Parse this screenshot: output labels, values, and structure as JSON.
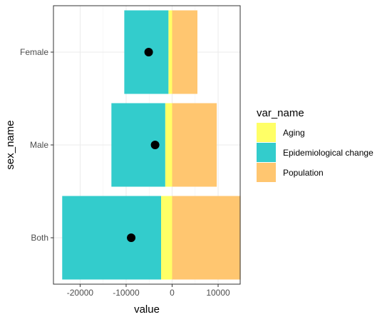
{
  "chart_data": {
    "type": "bar",
    "orientation": "horizontal",
    "stacked": true,
    "xlabel": "value",
    "ylabel": "sex_name",
    "categories": [
      "Both",
      "Male",
      "Female"
    ],
    "xlim": [
      -25800,
      14800
    ],
    "x_ticks": [
      -20000,
      -10000,
      0,
      10000
    ],
    "x_tick_labels": [
      "-20000",
      "-10000",
      "0",
      "10000"
    ],
    "grid": true,
    "series": [
      {
        "name": "Aging",
        "color": "#FFFF66",
        "values": [
          -2400,
          -1500,
          -800
        ]
      },
      {
        "name": "Epidemiological change",
        "color": "#33CCCC",
        "values": [
          -21500,
          -11700,
          -9600
        ]
      },
      {
        "name": "Population",
        "color": "#FFC670",
        "values": [
          14900,
          9700,
          5500
        ]
      }
    ],
    "net_points": {
      "marker": "black-dot",
      "values": [
        -8900,
        -3700,
        -5100
      ]
    },
    "legend": {
      "title": "var_name",
      "position": "right",
      "items": [
        "Aging",
        "Epidemiological change",
        "Population"
      ]
    }
  }
}
